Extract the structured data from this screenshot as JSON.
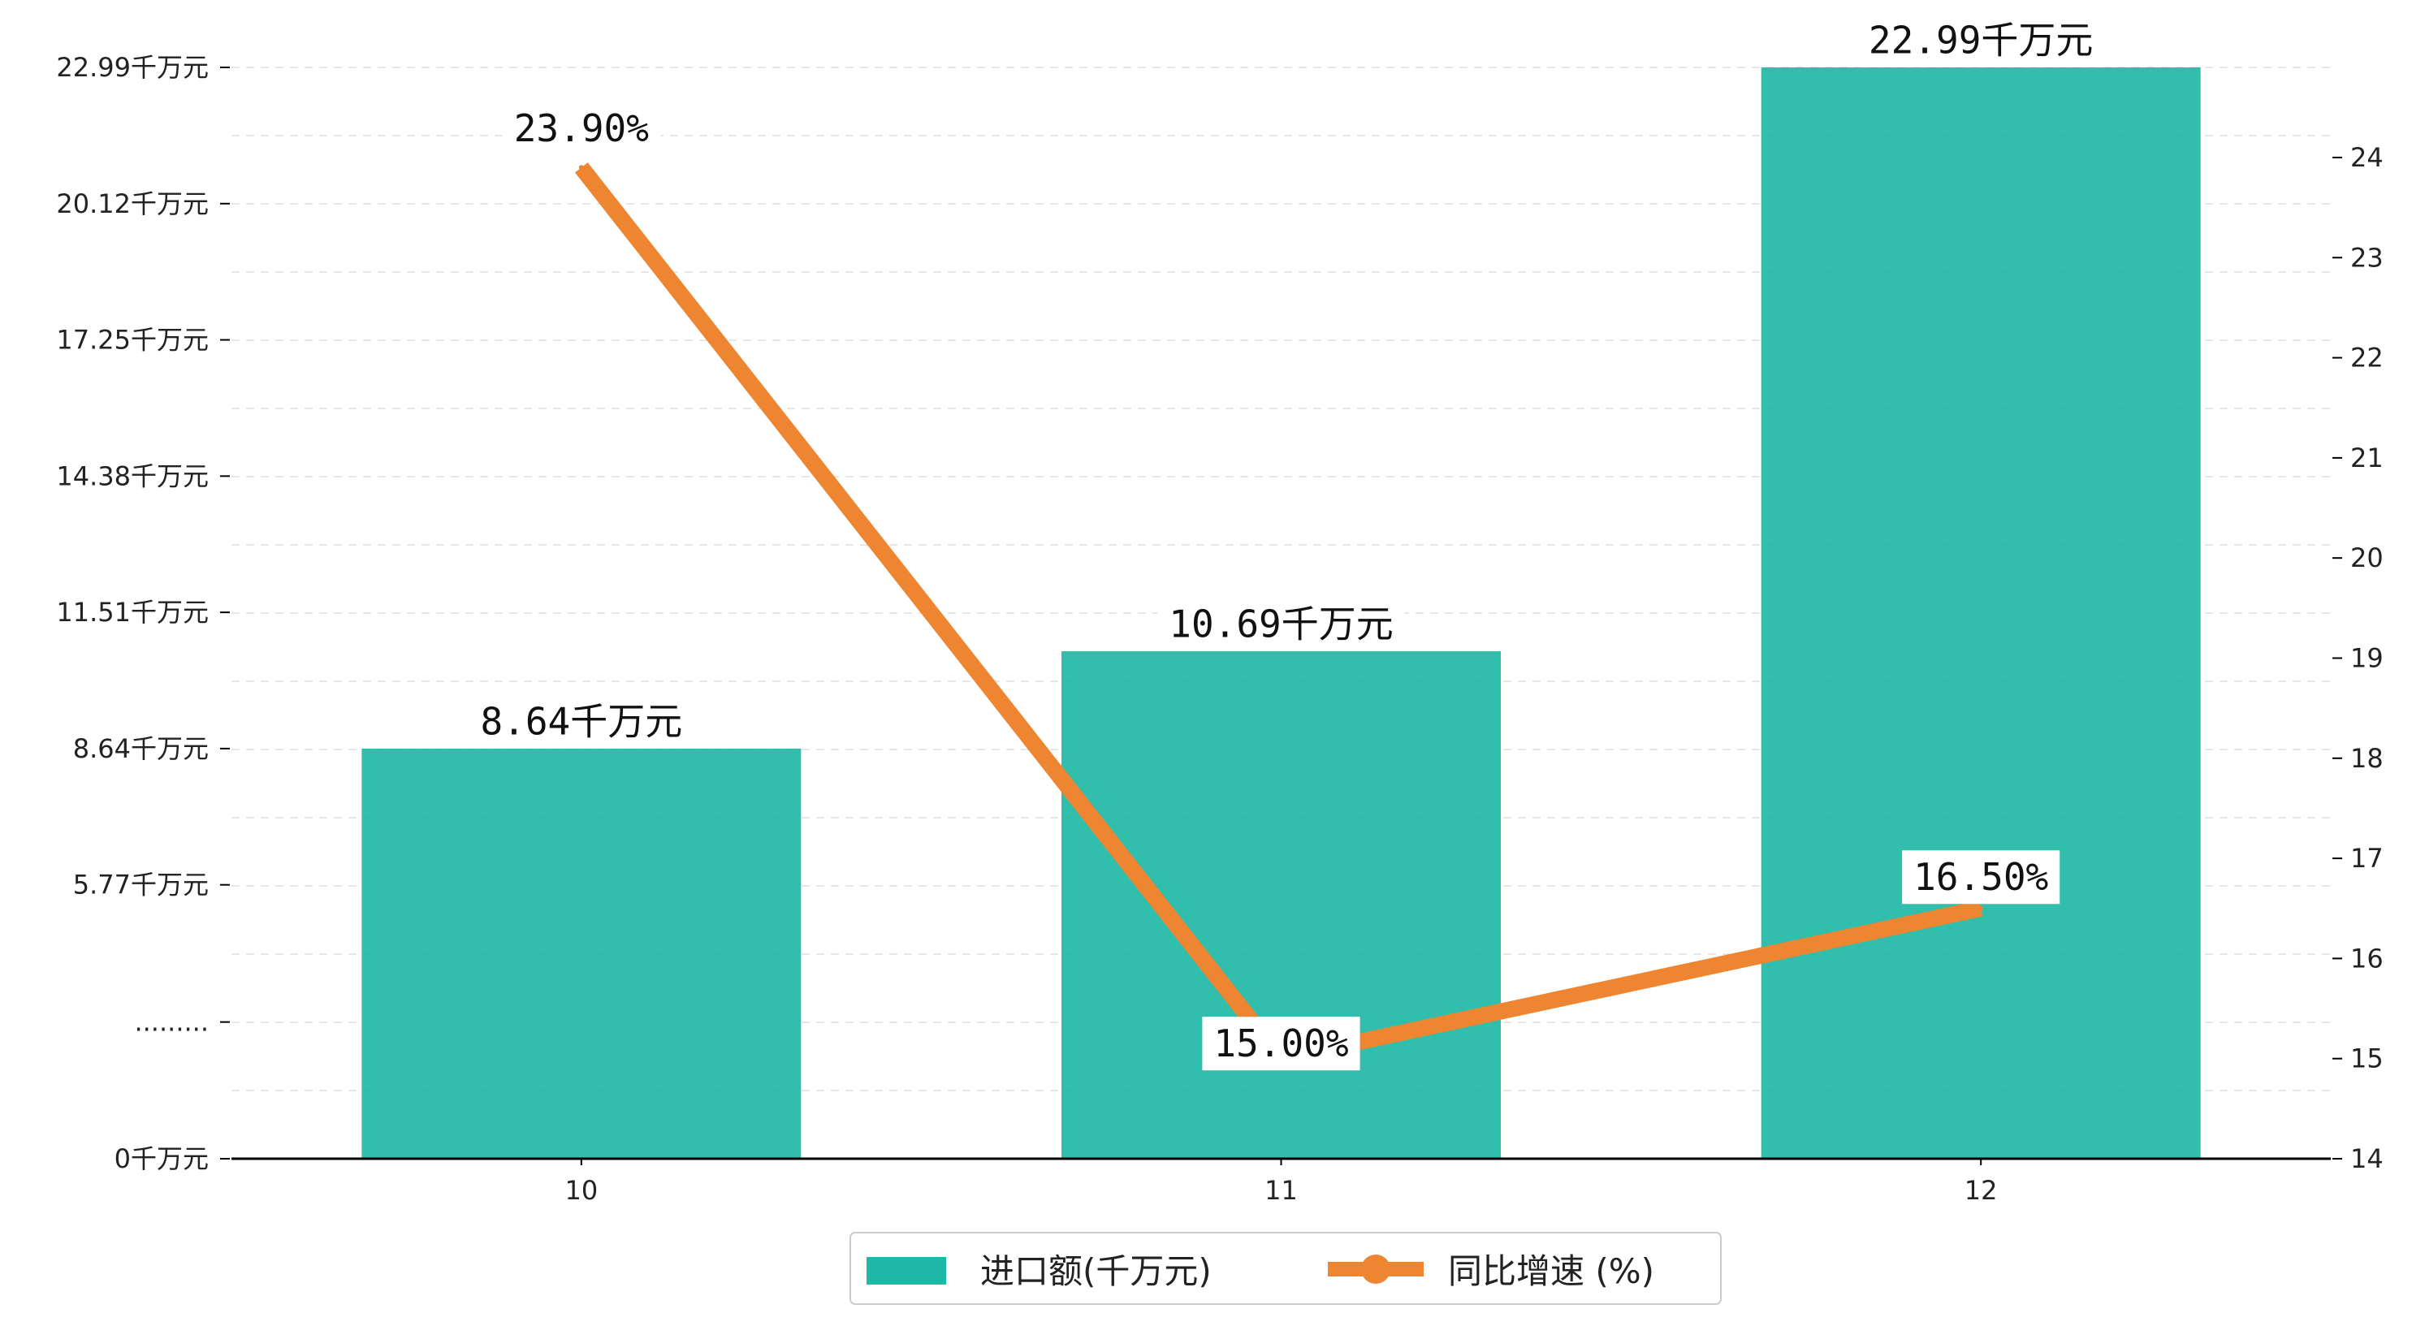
{
  "chart_data": {
    "type": "bar",
    "categories": [
      "10",
      "11",
      "12"
    ],
    "series": [
      {
        "name": "进口额(千万元)",
        "type": "bar",
        "axis": "left",
        "values": [
          8.64,
          10.69,
          22.99
        ],
        "labels": [
          "8.64千万元",
          "10.69千万元",
          "22.99千万元"
        ],
        "color": "#1fb8a6"
      },
      {
        "name": "同比增速 (%)",
        "type": "line",
        "axis": "right",
        "values": [
          23.9,
          15.0,
          16.5
        ],
        "labels": [
          "23.90%",
          "15.00%",
          "16.50%"
        ],
        "color": "#ee8531"
      }
    ],
    "y_left": {
      "ylim": [
        0,
        22.99
      ],
      "ticks": [
        {
          "value": 0,
          "label": "0千万元"
        },
        {
          "value": 2.88,
          "label": "........."
        },
        {
          "value": 5.77,
          "label": "5.77千万元"
        },
        {
          "value": 8.64,
          "label": "8.64千万元"
        },
        {
          "value": 11.51,
          "label": "11.51千万元"
        },
        {
          "value": 14.38,
          "label": "14.38千万元"
        },
        {
          "value": 17.25,
          "label": "17.25千万元"
        },
        {
          "value": 20.12,
          "label": "20.12千万元"
        },
        {
          "value": 22.99,
          "label": "22.99千万元"
        }
      ]
    },
    "y_right": {
      "ylim": [
        14,
        24.9
      ],
      "ticks": [
        {
          "value": 14,
          "label": "14"
        },
        {
          "value": 15,
          "label": "15"
        },
        {
          "value": 16,
          "label": "16"
        },
        {
          "value": 17,
          "label": "17"
        },
        {
          "value": 18,
          "label": "18"
        },
        {
          "value": 19,
          "label": "19"
        },
        {
          "value": 20,
          "label": "20"
        },
        {
          "value": 21,
          "label": "21"
        },
        {
          "value": 22,
          "label": "22"
        },
        {
          "value": 23,
          "label": "23"
        },
        {
          "value": 24,
          "label": "24"
        }
      ]
    },
    "grid": true,
    "legend": {
      "placement": "bottom-center",
      "items": [
        "进口额(千万元)",
        "同比增速 (%)"
      ]
    }
  }
}
